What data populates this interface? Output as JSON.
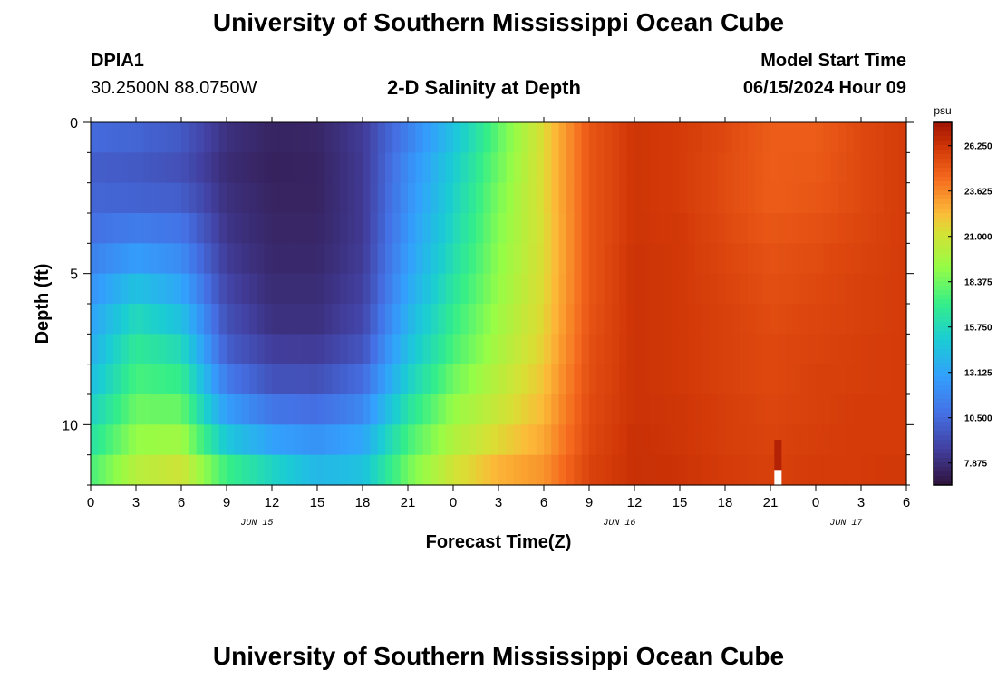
{
  "header": {
    "title": "University of Southern Mississippi Ocean Cube",
    "station": "DPIA1",
    "coords": "30.2500N  88.0750W",
    "plot_title": "2-D Salinity at Depth",
    "start_label": "Model Start Time",
    "start_time": "06/15/2024 Hour 09"
  },
  "footer": {
    "title": "University of Southern Mississippi Ocean Cube"
  },
  "chart_data": {
    "type": "heatmap",
    "title": "2-D Salinity at Depth",
    "xlabel": "Forecast Time(Z)",
    "ylabel": "Depth (ft)",
    "x_ticks": [
      "0",
      "3",
      "6",
      "9",
      "12",
      "15",
      "18",
      "21",
      "0",
      "3",
      "6",
      "9",
      "12",
      "15",
      "18",
      "21",
      "0",
      "3",
      "6"
    ],
    "date_labels": [
      {
        "label": "JUN 15",
        "hour": 11
      },
      {
        "label": "JUN 16",
        "hour": 35
      },
      {
        "label": "JUN 17",
        "hour": 50
      }
    ],
    "xlim": [
      0,
      54
    ],
    "y_ticks": [
      0,
      5,
      10
    ],
    "ylim": [
      0,
      12
    ],
    "y_inverted": true,
    "colorbar": {
      "unit": "psu",
      "ticks": [
        "26.250",
        "23.625",
        "21.000",
        "18.375",
        "15.750",
        "13.125",
        "10.500",
        "7.875"
      ],
      "range": [
        6.6,
        27.6
      ]
    },
    "depths_ft": [
      0.5,
      1.5,
      2.5,
      3.5,
      4.5,
      5.5,
      6.5,
      7.5,
      8.5,
      9.5,
      10.5,
      11.5
    ],
    "hours": [
      0,
      3,
      6,
      9,
      12,
      15,
      18,
      21,
      24,
      27,
      30,
      33,
      36,
      39,
      42,
      45,
      48,
      51,
      54
    ],
    "values": [
      [
        10.5,
        10.3,
        9.8,
        8.0,
        7.4,
        7.5,
        8.5,
        11.5,
        14.5,
        18.0,
        21.5,
        25.0,
        26.2,
        26.0,
        25.5,
        24.8,
        24.8,
        25.5,
        26.0
      ],
      [
        10.0,
        9.8,
        9.4,
        7.8,
        7.3,
        7.4,
        8.4,
        12.0,
        15.0,
        18.3,
        21.5,
        25.0,
        26.2,
        26.0,
        25.4,
        24.8,
        24.9,
        25.5,
        26.0
      ],
      [
        10.3,
        10.2,
        10.0,
        8.0,
        7.4,
        7.4,
        8.4,
        12.2,
        15.3,
        18.6,
        21.5,
        25.0,
        26.2,
        26.0,
        25.4,
        24.8,
        25.0,
        25.5,
        26.0
      ],
      [
        10.8,
        11.3,
        11.0,
        8.2,
        7.5,
        7.5,
        8.4,
        12.5,
        15.6,
        18.8,
        21.4,
        25.0,
        26.2,
        26.1,
        25.5,
        25.0,
        25.2,
        25.6,
        26.0
      ],
      [
        11.5,
        12.8,
        12.0,
        8.5,
        7.6,
        7.6,
        8.5,
        12.8,
        16.0,
        19.0,
        21.4,
        25.0,
        26.3,
        26.1,
        25.6,
        25.2,
        25.4,
        25.7,
        26.0
      ],
      [
        12.3,
        14.5,
        13.2,
        8.9,
        7.8,
        7.8,
        8.7,
        13.2,
        16.5,
        19.2,
        21.5,
        25.0,
        26.3,
        26.1,
        25.7,
        25.3,
        25.5,
        25.8,
        26.0
      ],
      [
        13.0,
        15.8,
        14.5,
        9.4,
        8.0,
        8.0,
        9.0,
        13.8,
        17.0,
        19.5,
        21.6,
        25.1,
        26.3,
        26.1,
        25.8,
        25.4,
        25.6,
        25.8,
        26.0
      ],
      [
        13.6,
        16.8,
        15.8,
        10.0,
        8.6,
        8.5,
        9.6,
        14.4,
        17.5,
        19.8,
        21.8,
        25.2,
        26.3,
        26.1,
        25.8,
        25.5,
        25.7,
        25.9,
        26.0
      ],
      [
        14.3,
        17.5,
        17.0,
        11.2,
        9.5,
        9.4,
        10.6,
        15.2,
        18.3,
        20.3,
        22.1,
        25.3,
        26.3,
        26.1,
        25.8,
        25.5,
        25.8,
        25.9,
        26.0
      ],
      [
        15.3,
        18.3,
        18.2,
        12.8,
        11.0,
        10.7,
        11.8,
        16.3,
        19.2,
        20.8,
        22.4,
        25.4,
        26.3,
        26.2,
        25.9,
        25.6,
        25.8,
        26.0,
        26.0
      ],
      [
        16.3,
        19.2,
        19.5,
        14.8,
        13.0,
        12.3,
        13.2,
        17.4,
        20.0,
        21.5,
        22.8,
        25.5,
        26.4,
        26.2,
        25.9,
        25.7,
        25.9,
        26.0,
        26.0
      ],
      [
        17.5,
        20.2,
        21.0,
        17.2,
        15.5,
        14.0,
        14.5,
        18.4,
        21.0,
        22.5,
        23.3,
        25.7,
        26.4,
        26.3,
        26.0,
        25.8,
        26.0,
        26.0,
        26.1
      ]
    ],
    "highlight": {
      "hour": 45.5,
      "depth_from": 10.5,
      "depth_to": 11.5,
      "value": 27.0
    },
    "gap": {
      "hour": 45.5,
      "depth_from": 11.5,
      "depth_to": 12
    }
  }
}
